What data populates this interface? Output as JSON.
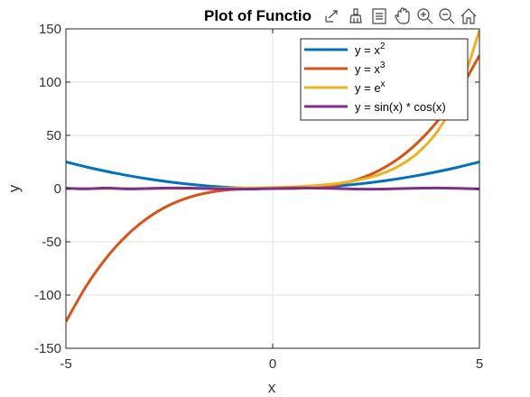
{
  "toolbar": {
    "icons": [
      "export-icon",
      "brush-icon",
      "data-tips-icon",
      "pan-icon",
      "zoom-in-icon",
      "zoom-out-icon",
      "home-icon"
    ]
  },
  "chart_data": {
    "type": "line",
    "title": "Plot of Functio",
    "xlabel": "x",
    "ylabel": "y",
    "xlim": [
      -5,
      5
    ],
    "ylim": [
      -150,
      150
    ],
    "xticks": [
      -5,
      0,
      5
    ],
    "yticks": [
      -150,
      -100,
      -50,
      0,
      50,
      100,
      150
    ],
    "xtick_labels": [
      "-5",
      "0",
      "5"
    ],
    "ytick_labels": [
      "-150",
      "-100",
      "-50",
      "0",
      "50",
      "100",
      "150"
    ],
    "grid": true,
    "legend_position": "top-right",
    "x": [
      -5,
      -4.5,
      -4,
      -3.5,
      -3,
      -2.5,
      -2,
      -1.5,
      -1,
      -0.5,
      0,
      0.5,
      1,
      1.5,
      2,
      2.5,
      3,
      3.5,
      4,
      4.5,
      5
    ],
    "series": [
      {
        "name": "y = x²",
        "legend_base": "y  =  x",
        "legend_sup": "2",
        "color": "#0072BD",
        "values": [
          25,
          20.25,
          16,
          12.25,
          9,
          6.25,
          4,
          2.25,
          1,
          0.25,
          0,
          0.25,
          1,
          2.25,
          4,
          6.25,
          9,
          12.25,
          16,
          20.25,
          25
        ]
      },
      {
        "name": "y = x³",
        "legend_base": "y  =  x",
        "legend_sup": "3",
        "color": "#D95319",
        "values": [
          -125,
          -91.1,
          -64,
          -42.9,
          -27,
          -15.6,
          -8,
          -3.4,
          -1,
          -0.1,
          0,
          0.1,
          1,
          3.4,
          8,
          15.6,
          27,
          42.9,
          64,
          91.1,
          125
        ]
      },
      {
        "name": "y = eˣ",
        "legend_base": "y  =  e",
        "legend_sup": "x",
        "color": "#EDB120",
        "values": [
          0.007,
          0.011,
          0.018,
          0.03,
          0.05,
          0.08,
          0.14,
          0.22,
          0.37,
          0.61,
          1,
          1.65,
          2.72,
          4.48,
          7.39,
          12.18,
          20.09,
          33.12,
          54.6,
          90.02,
          148.41
        ]
      },
      {
        "name": "y = sin(x) * cos(x)",
        "legend_base": "y = sin(x) * cos(x)",
        "legend_sup": "",
        "color": "#7E2F8E",
        "values": [
          0.27,
          -0.21,
          0.49,
          -0.33,
          0.14,
          0.48,
          0.38,
          -0.07,
          -0.45,
          -0.42,
          0,
          0.42,
          0.45,
          0.07,
          -0.38,
          -0.48,
          -0.14,
          0.33,
          0.49,
          0.21,
          -0.27
        ]
      }
    ]
  }
}
